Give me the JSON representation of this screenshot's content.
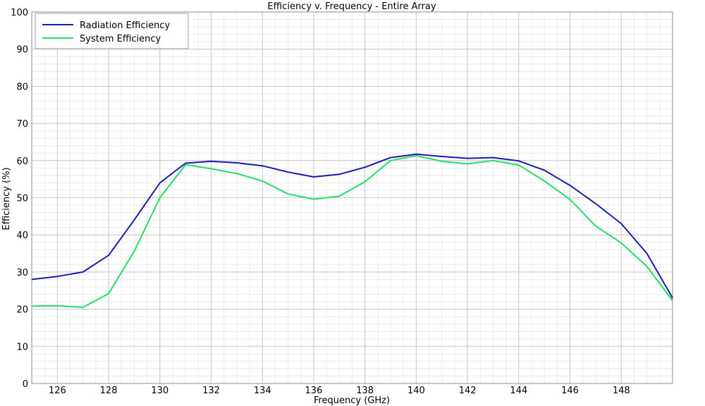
{
  "chart_data": {
    "type": "line",
    "title": "Efficiency v. Frequency - Entire Array",
    "xlabel": "Frequency (GHz)",
    "ylabel": "Efficiency (%)",
    "xlim": [
      125,
      150
    ],
    "ylim": [
      0,
      100
    ],
    "x_ticks": [
      126,
      128,
      130,
      132,
      134,
      136,
      138,
      140,
      142,
      144,
      146,
      148
    ],
    "y_ticks": [
      0,
      10,
      20,
      30,
      40,
      50,
      60,
      70,
      80,
      90,
      100
    ],
    "grid": true,
    "legend_position": "top-left",
    "x": [
      125,
      126,
      127,
      128,
      129,
      130,
      131,
      132,
      133,
      134,
      135,
      136,
      137,
      138,
      139,
      140,
      141,
      142,
      143,
      144,
      145,
      146,
      147,
      148,
      149,
      150
    ],
    "series": [
      {
        "name": "Radiation Efficiency",
        "color": "#1b1bb0",
        "values": [
          28.0,
          28.8,
          30.0,
          34.5,
          44.0,
          54.0,
          59.3,
          59.8,
          59.4,
          58.6,
          56.9,
          55.6,
          56.3,
          58.2,
          60.8,
          61.7,
          61.1,
          60.6,
          60.8,
          59.9,
          57.4,
          53.3,
          48.4,
          43.0,
          35.0,
          23.0
        ]
      },
      {
        "name": "System Efficiency",
        "color": "#22dd66",
        "values": [
          20.8,
          20.9,
          20.5,
          24.2,
          35.6,
          50.0,
          58.9,
          57.8,
          56.5,
          54.5,
          51.0,
          49.6,
          50.4,
          54.3,
          60.0,
          61.3,
          59.8,
          59.1,
          60.0,
          58.8,
          54.5,
          49.5,
          42.4,
          37.8,
          31.5,
          22.3
        ]
      }
    ]
  }
}
